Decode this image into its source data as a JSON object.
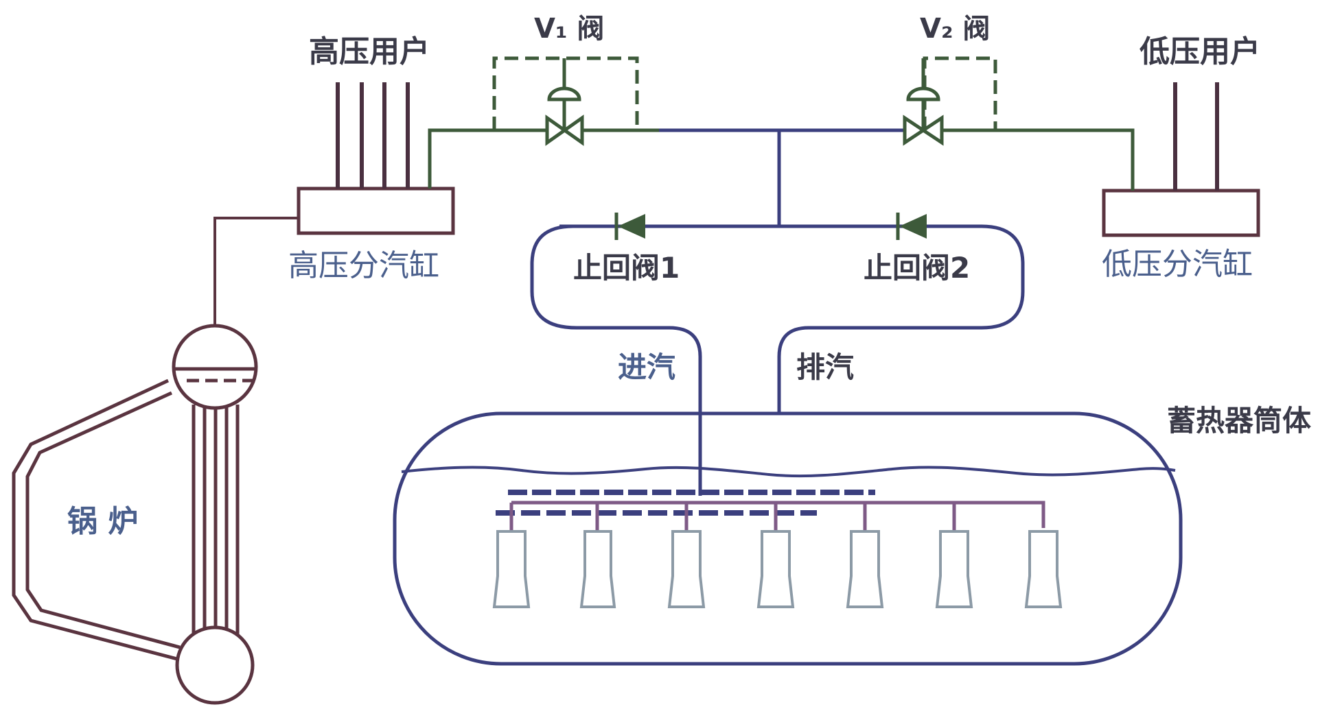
{
  "labels": {
    "high_pressure_users": "高压用户",
    "low_pressure_users": "低压用户",
    "v1_valve": "V₁ 阀",
    "v2_valve": "V₂ 阀",
    "high_pressure_header": "高压分汽缸",
    "low_pressure_header": "低压分汽缸",
    "check_valve_1": "止回阀1",
    "check_valve_2": "止回阀2",
    "steam_inlet": "进汽",
    "steam_exhaust": "排汽",
    "accumulator_shell": "蓄热器筒体",
    "boiler": "锅 炉"
  },
  "colors": {
    "green_pipe": "#3d5a3a",
    "blue_pipe": "#3b3f7e",
    "brown_pipe": "#5a3440",
    "purple_pipe": "#7e5a86",
    "nozzle": "#8c9aa6",
    "label_blue": "#4a5f8c",
    "label_dark": "#3a3a48"
  }
}
